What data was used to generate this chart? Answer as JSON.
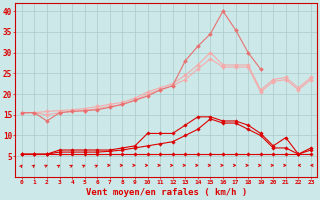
{
  "background_color": "#cce8e8",
  "grid_color": "#aacccc",
  "xlabel": "Vent moyen/en rafales ( km/h )",
  "x_ticks": [
    0,
    1,
    2,
    3,
    4,
    5,
    6,
    7,
    8,
    9,
    10,
    11,
    12,
    13,
    14,
    15,
    16,
    17,
    18,
    19,
    20,
    21,
    22,
    23
  ],
  "ylim": [
    0,
    42
  ],
  "y_ticks": [
    5,
    10,
    15,
    20,
    25,
    30,
    35,
    40
  ],
  "series": [
    {
      "name": "line_top1",
      "color": "#f5aaaa",
      "linewidth": 0.8,
      "marker": "D",
      "markersize": 2.0,
      "values": [
        15.5,
        15.5,
        15.8,
        16.0,
        16.2,
        16.5,
        17.0,
        17.5,
        18.0,
        19.0,
        20.5,
        21.5,
        22.5,
        24.5,
        27.0,
        30.0,
        27.0,
        27.0,
        27.0,
        21.0,
        23.5,
        24.0,
        21.5,
        24.0
      ]
    },
    {
      "name": "line_top2",
      "color": "#f5aaaa",
      "linewidth": 0.8,
      "marker": "D",
      "markersize": 2.0,
      "values": [
        15.5,
        15.5,
        15.0,
        15.5,
        15.8,
        16.0,
        16.5,
        17.0,
        17.5,
        18.5,
        20.0,
        21.0,
        22.0,
        23.5,
        26.0,
        28.5,
        26.5,
        26.5,
        26.5,
        20.5,
        23.0,
        23.5,
        21.0,
        23.5
      ]
    },
    {
      "name": "line_medium",
      "color": "#e87070",
      "linewidth": 0.8,
      "marker": "D",
      "markersize": 2.0,
      "values": [
        15.5,
        15.5,
        13.5,
        15.5,
        15.8,
        16.0,
        16.2,
        16.8,
        17.5,
        18.5,
        19.5,
        21.0,
        22.0,
        28.0,
        31.5,
        34.5,
        40.0,
        35.5,
        30.0,
        26.0,
        null,
        null,
        null,
        null
      ]
    },
    {
      "name": "line_dark1",
      "color": "#dd0000",
      "linewidth": 0.8,
      "marker": "D",
      "markersize": 1.8,
      "values": [
        5.5,
        5.5,
        5.5,
        6.5,
        6.5,
        6.5,
        6.5,
        6.5,
        7.0,
        7.5,
        10.5,
        10.5,
        10.5,
        12.5,
        14.5,
        14.5,
        13.5,
        13.5,
        12.5,
        10.5,
        7.5,
        9.5,
        5.5,
        7.0
      ]
    },
    {
      "name": "line_dark2",
      "color": "#dd0000",
      "linewidth": 0.8,
      "marker": "D",
      "markersize": 1.8,
      "values": [
        5.5,
        5.5,
        5.5,
        6.0,
        6.0,
        6.0,
        6.0,
        6.2,
        6.5,
        7.0,
        7.5,
        8.0,
        8.5,
        10.0,
        11.5,
        14.0,
        13.0,
        13.0,
        11.5,
        10.0,
        7.0,
        7.0,
        5.5,
        6.5
      ]
    },
    {
      "name": "line_flat",
      "color": "#dd0000",
      "linewidth": 0.8,
      "marker": "D",
      "markersize": 1.8,
      "values": [
        5.5,
        5.5,
        5.5,
        5.5,
        5.5,
        5.5,
        5.5,
        5.5,
        5.5,
        5.5,
        5.5,
        5.5,
        5.5,
        5.5,
        5.5,
        5.5,
        5.5,
        5.5,
        5.5,
        5.5,
        5.5,
        5.5,
        5.5,
        5.5
      ]
    }
  ],
  "arrow_angles": [
    135,
    120,
    110,
    115,
    115,
    110,
    110,
    90,
    90,
    90,
    90,
    90,
    90,
    90,
    90,
    90,
    90,
    90,
    90,
    90,
    90,
    90,
    270,
    270
  ]
}
